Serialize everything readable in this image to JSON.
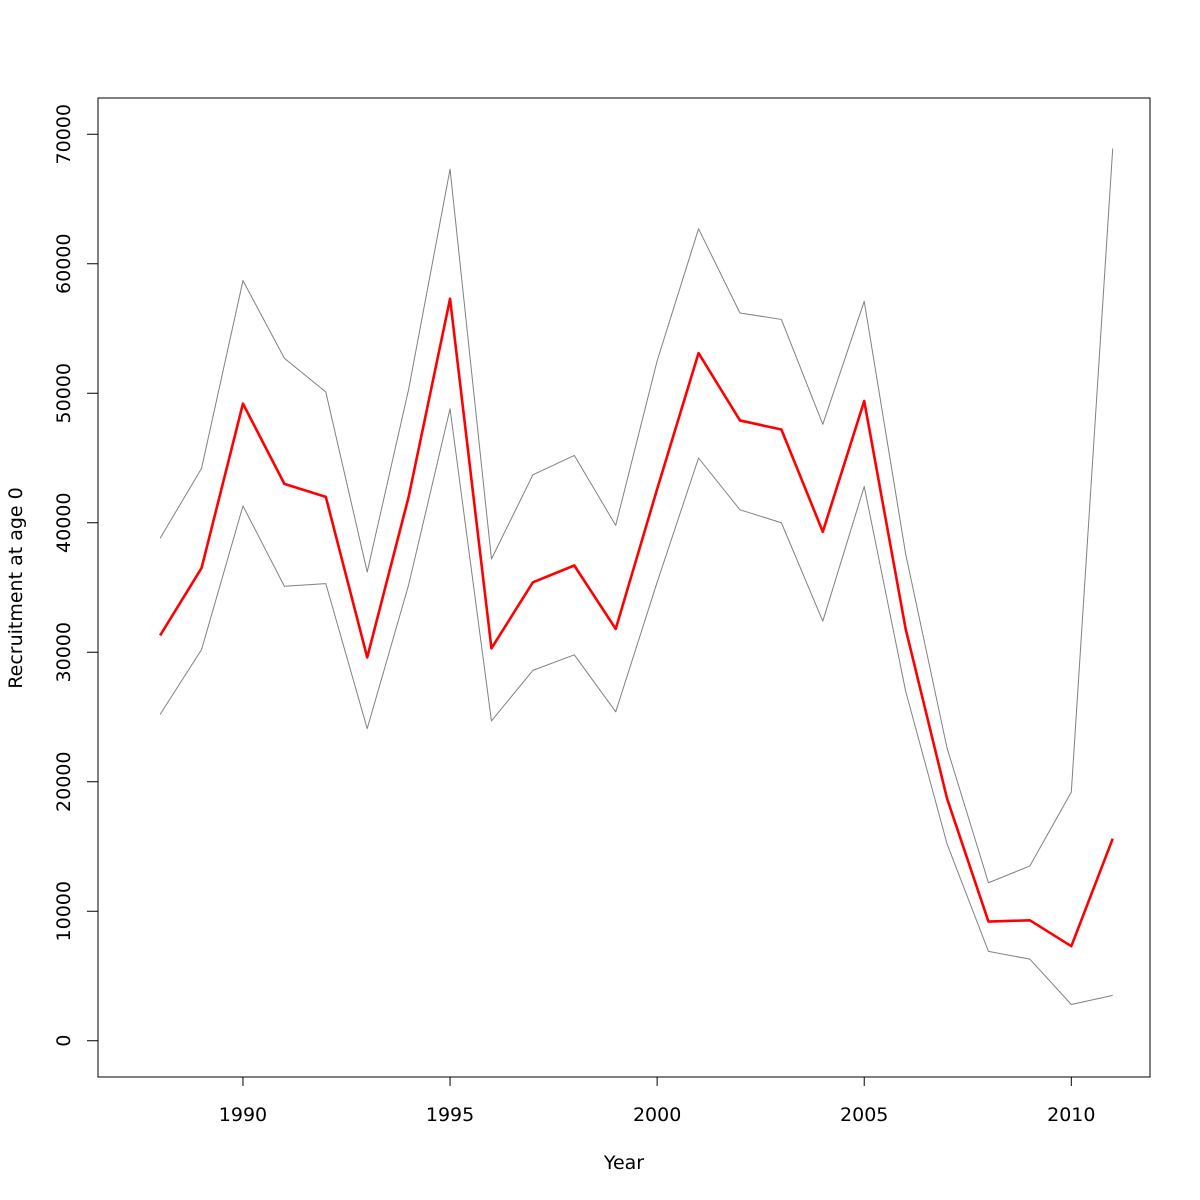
{
  "chart_data": {
    "type": "line",
    "title": "",
    "xlabel": "Year",
    "ylabel": "Recruitment at age 0",
    "x": [
      1988,
      1989,
      1990,
      1991,
      1992,
      1993,
      1994,
      1995,
      1996,
      1997,
      1998,
      1999,
      2000,
      2001,
      2002,
      2003,
      2004,
      2005,
      2006,
      2007,
      2008,
      2009,
      2010,
      2011
    ],
    "xlim": [
      1986.5,
      2011.9
    ],
    "ylim": [
      -2800,
      72800
    ],
    "xticks": [
      1990,
      1995,
      2000,
      2005,
      2010
    ],
    "yticks": [
      0,
      10000,
      20000,
      30000,
      40000,
      50000,
      60000,
      70000
    ],
    "xtick_labels": [
      "1990",
      "1995",
      "2000",
      "2005",
      "2010"
    ],
    "ytick_labels": [
      "0",
      "10000",
      "20000",
      "30000",
      "40000",
      "50000",
      "60000",
      "70000"
    ],
    "grid": false,
    "legend": "none",
    "series": [
      {
        "role": "upper-bound",
        "color": "#808080",
        "values": [
          38800,
          44200,
          58700,
          52700,
          50100,
          36200,
          50300,
          67300,
          37200,
          43700,
          45200,
          39800,
          52500,
          62700,
          56200,
          55700,
          47600,
          57100,
          37600,
          22600,
          12200,
          13500,
          19200,
          68900
        ]
      },
      {
        "role": "estimate",
        "color": "#ff0000",
        "values": [
          31300,
          36500,
          49200,
          43000,
          42000,
          29600,
          42000,
          57300,
          30300,
          35400,
          36700,
          31800,
          42600,
          53100,
          47900,
          47200,
          39300,
          49400,
          31800,
          18700,
          9200,
          9300,
          7300,
          15600
        ]
      },
      {
        "role": "lower-bound",
        "color": "#808080",
        "values": [
          25200,
          30200,
          41300,
          35100,
          35300,
          24100,
          35200,
          48800,
          24700,
          28600,
          29800,
          25400,
          35400,
          45000,
          41000,
          40000,
          32400,
          42800,
          27000,
          15200,
          6900,
          6300,
          2800,
          3500
        ]
      }
    ]
  }
}
